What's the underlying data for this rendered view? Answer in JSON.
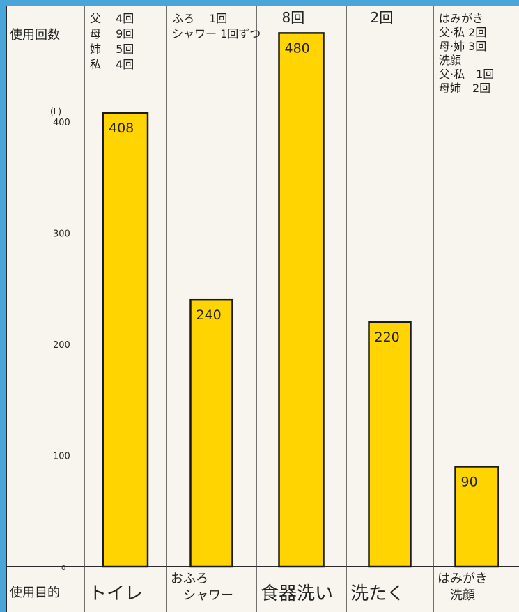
{
  "chart_data": {
    "type": "bar",
    "title": "",
    "ylabel": "(L)",
    "ylim": [
      0,
      480
    ],
    "yticks": [
      "0",
      "100",
      "200",
      "300",
      "400"
    ],
    "row_label_top": "使用回数",
    "row_label_bottom": "使用目的",
    "bar_color": "#ffd400",
    "categories": [
      {
        "label_lines": [
          "トイレ"
        ],
        "value": 408,
        "value_label": "408",
        "usage_lines": [
          "父　 4回",
          "母　 9回",
          "姉　 5回",
          "私　 4回"
        ]
      },
      {
        "label_lines": [
          "おふろ",
          "　シャワー"
        ],
        "value": 240,
        "value_label": "240",
        "usage_lines": [
          "ふろ　 1回",
          "シャワー 1回ずつ"
        ]
      },
      {
        "label_lines": [
          "食器洗い"
        ],
        "value": 480,
        "value_label": "480",
        "usage_lines": [
          "8回"
        ]
      },
      {
        "label_lines": [
          "洗たく"
        ],
        "value": 220,
        "value_label": "220",
        "usage_lines": [
          "2回"
        ]
      },
      {
        "label_lines": [
          "はみがき",
          "　洗顔"
        ],
        "value": 90,
        "value_label": "90",
        "usage_lines": [
          "はみがき",
          "父·私 2回",
          "母·姉 3回",
          "洗顔",
          "父·私　1回",
          "母姉　2回"
        ]
      }
    ]
  }
}
